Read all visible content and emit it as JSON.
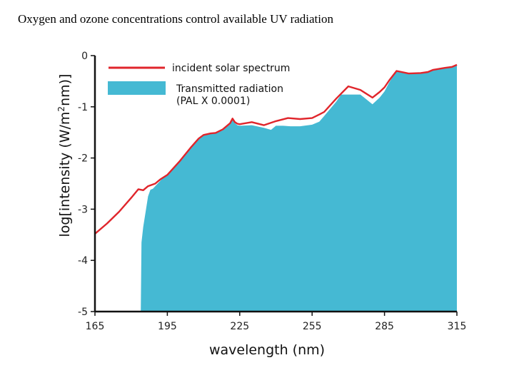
{
  "page_title": "Oxygen and ozone concentrations control available UV radiation",
  "chart_data": {
    "type": "area",
    "xlabel": "wavelength (nm)",
    "ylabel": {
      "prefix": "log[intensity (W/m",
      "sup": "2",
      "suffix": "nm)]"
    },
    "xlim": [
      165,
      315
    ],
    "ylim": [
      -5,
      0
    ],
    "x_ticks": [
      "165",
      "195",
      "225",
      "255",
      "285",
      "315"
    ],
    "y_ticks": [
      "0",
      "-1",
      "-2",
      "-3",
      "-4",
      "-5"
    ],
    "series": [
      {
        "name": "incident solar spectrum",
        "style": "line",
        "color": "#e0252b",
        "x": [
          165,
          170,
          175,
          180,
          183,
          185,
          187,
          190,
          192,
          195,
          200,
          205,
          208,
          210,
          213,
          215,
          218,
          221,
          222,
          223,
          224,
          225,
          230,
          235,
          240,
          245,
          250,
          255,
          258,
          260,
          265,
          270,
          275,
          280,
          283,
          285,
          287,
          290,
          295,
          300,
          303,
          305,
          310,
          313,
          315
        ],
        "y": [
          -3.48,
          -3.28,
          -3.05,
          -2.78,
          -2.61,
          -2.63,
          -2.55,
          -2.5,
          -2.42,
          -2.33,
          -2.07,
          -1.78,
          -1.62,
          -1.55,
          -1.52,
          -1.51,
          -1.44,
          -1.32,
          -1.23,
          -1.3,
          -1.33,
          -1.34,
          -1.3,
          -1.36,
          -1.28,
          -1.22,
          -1.24,
          -1.22,
          -1.15,
          -1.1,
          -0.84,
          -0.6,
          -0.67,
          -0.82,
          -0.71,
          -0.62,
          -0.48,
          -0.3,
          -0.35,
          -0.34,
          -0.32,
          -0.28,
          -0.24,
          -0.22,
          -0.18
        ]
      },
      {
        "name": "Transmitted radiation (PAL X 0.0001)",
        "style": "area",
        "color": "#45b9d3",
        "x": [
          184,
          184.3,
          185,
          186,
          187,
          188,
          189,
          190,
          191,
          192,
          193,
          195,
          200,
          205,
          208,
          210,
          213,
          215,
          218,
          221,
          222,
          223,
          224,
          225,
          230,
          235,
          238,
          240,
          243,
          246,
          250,
          255,
          258,
          260,
          265,
          267,
          270,
          273,
          275,
          280,
          283,
          285,
          287,
          290,
          295,
          300,
          303,
          305,
          310,
          313,
          315
        ],
        "y": [
          -5.0,
          -3.65,
          -3.35,
          -3.05,
          -2.75,
          -2.62,
          -2.6,
          -2.55,
          -2.5,
          -2.45,
          -2.4,
          -2.33,
          -2.09,
          -1.79,
          -1.64,
          -1.56,
          -1.53,
          -1.52,
          -1.46,
          -1.34,
          -1.25,
          -1.32,
          -1.36,
          -1.37,
          -1.36,
          -1.41,
          -1.45,
          -1.37,
          -1.37,
          -1.38,
          -1.38,
          -1.35,
          -1.29,
          -1.18,
          -0.9,
          -0.76,
          -0.76,
          -0.76,
          -0.76,
          -0.95,
          -0.82,
          -0.7,
          -0.52,
          -0.3,
          -0.35,
          -0.34,
          -0.32,
          -0.28,
          -0.24,
          -0.22,
          -0.18
        ]
      }
    ],
    "legend": {
      "position": "top-left",
      "line_label": "incident solar spectrum",
      "area_label_line1": "Transmitted radiation",
      "area_label_line2": "(PAL X 0.0001)"
    }
  }
}
